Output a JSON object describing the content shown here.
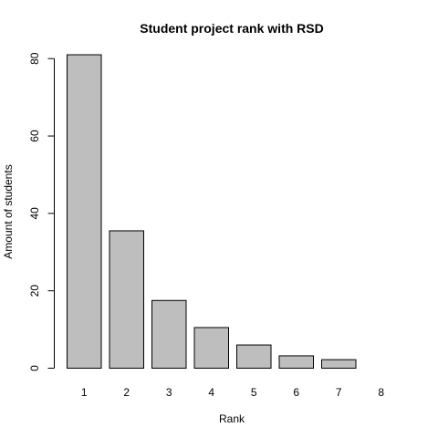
{
  "chart_data": {
    "type": "bar",
    "title": "Student project rank with RSD",
    "xlabel": "Rank",
    "ylabel": "Amount of students",
    "categories": [
      "1",
      "2",
      "3",
      "4",
      "5",
      "6",
      "7",
      "8"
    ],
    "values": [
      81,
      35.5,
      17.5,
      10.5,
      6,
      3.2,
      2.2,
      0
    ],
    "ylim": [
      0,
      80
    ],
    "yticks": [
      "0",
      "20",
      "40",
      "60",
      "80"
    ],
    "grid": false,
    "bar_color": "#bebebe",
    "bar_border": "#000000"
  }
}
